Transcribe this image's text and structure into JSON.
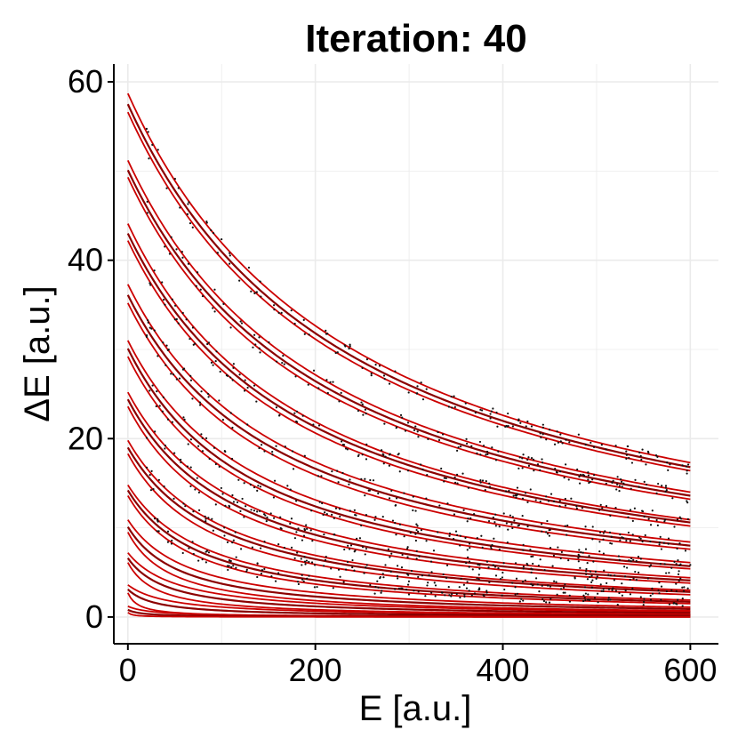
{
  "chart_data": {
    "type": "line",
    "title": "Iteration:  40",
    "xlabel": "E [a.u.]",
    "ylabel": "ΔE [a.u.]",
    "xlim": [
      -15,
      630
    ],
    "ylim": [
      -3,
      62
    ],
    "x_ticks": [
      0,
      200,
      400,
      600
    ],
    "y_ticks": [
      0,
      20,
      40,
      60
    ],
    "x_tick_labels": [
      "0",
      "200",
      "400",
      "600"
    ],
    "y_tick_labels": [
      "0",
      "20",
      "40",
      "60"
    ],
    "grid": true,
    "legend": "none",
    "x_range_of_curves": [
      0,
      600
    ],
    "curve_model": "y = y0 * 30 / (30 + E)",
    "series_groups": [
      {
        "group": 1,
        "y_at_0": [
          58.7,
          57.5,
          56.6
        ],
        "y_at_600": [
          17.3,
          16.8,
          16.4
        ]
      },
      {
        "group": 2,
        "y_at_0": [
          51.2,
          50.1,
          49.3
        ],
        "y_at_600": [
          14.0,
          13.6,
          13.2
        ]
      },
      {
        "group": 3,
        "y_at_0": [
          44.1,
          43.0,
          42.2
        ],
        "y_at_600": [
          10.9,
          10.6,
          10.2
        ]
      },
      {
        "group": 4,
        "y_at_0": [
          37.3,
          36.1,
          35.2
        ],
        "y_at_600": [
          8.4,
          8.0,
          7.6
        ]
      },
      {
        "group": 5,
        "y_at_0": [
          31.0,
          30.1,
          29.2
        ],
        "y_at_600": [
          6.1,
          5.7,
          5.4
        ]
      },
      {
        "group": 6,
        "y_at_0": [
          25.2,
          24.4,
          23.6
        ],
        "y_at_600": [
          4.4,
          4.1,
          3.8
        ]
      },
      {
        "group": 7,
        "y_at_0": [
          19.8,
          19.0,
          18.3
        ],
        "y_at_600": [
          3.0,
          2.8,
          2.5
        ]
      },
      {
        "group": 8,
        "y_at_0": [
          14.8,
          14.2,
          13.6
        ],
        "y_at_600": [
          1.9,
          1.7,
          1.5
        ]
      },
      {
        "group": 9,
        "y_at_0": [
          10.9,
          10.1,
          9.5
        ],
        "y_at_600": [
          1.1,
          0.9,
          0.7
        ]
      },
      {
        "group": 10,
        "y_at_0": [
          7.2,
          6.6,
          6.1
        ],
        "y_at_600": [
          0.6,
          0.45,
          0.3
        ]
      },
      {
        "group": 11,
        "y_at_0": [
          3.6,
          3.1,
          2.7
        ],
        "y_at_600": [
          0.25,
          0.15,
          0.05
        ]
      },
      {
        "group": 12,
        "y_at_0": [
          1.2,
          0.8,
          0.5
        ],
        "y_at_600": [
          0.05,
          0.02,
          0.0
        ]
      }
    ],
    "colors": {
      "fit_line": "#cc0000",
      "data_line": "#8b0000",
      "points": "#111111",
      "grid": "#ebebeb",
      "axis": "#000000"
    }
  }
}
